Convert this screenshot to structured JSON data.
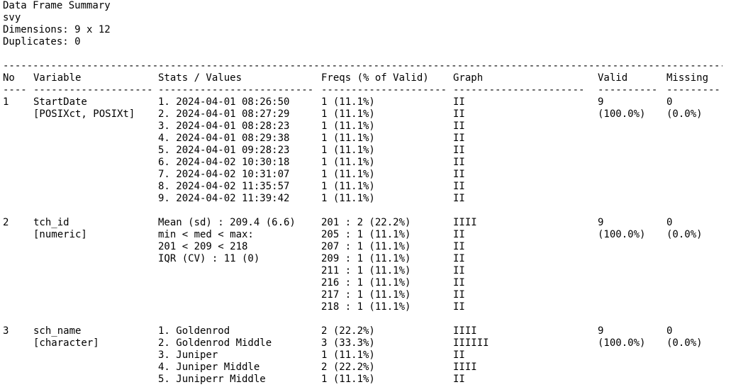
{
  "summary": {
    "title": "Data Frame Summary",
    "name": "svy",
    "dimensions": "Dimensions: 9 x 12",
    "duplicates": "Duplicates: 0"
  },
  "header": {
    "no": "No",
    "variable": "Variable",
    "stats": "Stats / Values",
    "freqs": "Freqs (% of Valid)",
    "graph": "Graph",
    "valid": "Valid",
    "missing": "Missing"
  },
  "rows": [
    {
      "no": "1",
      "variable": [
        "StartDate",
        "[POSIXct, POSIXt]"
      ],
      "stats": [
        "1. 2024-04-01 08:26:50",
        "2. 2024-04-01 08:27:29",
        "3. 2024-04-01 08:28:23",
        "4. 2024-04-01 08:29:38",
        "5. 2024-04-01 09:28:23",
        "6. 2024-04-02 10:30:18",
        "7. 2024-04-02 10:31:07",
        "8. 2024-04-02 11:35:57",
        "9. 2024-04-02 11:39:42"
      ],
      "freqs": [
        "1 (11.1%)",
        "1 (11.1%)",
        "1 (11.1%)",
        "1 (11.1%)",
        "1 (11.1%)",
        "1 (11.1%)",
        "1 (11.1%)",
        "1 (11.1%)",
        "1 (11.1%)"
      ],
      "graph": [
        "II",
        "II",
        "II",
        "II",
        "II",
        "II",
        "II",
        "II",
        "II"
      ],
      "valid": [
        "9",
        "(100.0%)"
      ],
      "missing": [
        "0",
        "(0.0%)"
      ]
    },
    {
      "no": "2",
      "variable": [
        "tch_id",
        "[numeric]"
      ],
      "stats": [
        "Mean (sd) : 209.4 (6.6)",
        "min < med < max:",
        "201 < 209 < 218",
        "IQR (CV) : 11 (0)"
      ],
      "freqs": [
        "201 : 2 (22.2%)",
        "205 : 1 (11.1%)",
        "207 : 1 (11.1%)",
        "209 : 1 (11.1%)",
        "211 : 1 (11.1%)",
        "216 : 1 (11.1%)",
        "217 : 1 (11.1%)",
        "218 : 1 (11.1%)"
      ],
      "graph": [
        "IIII",
        "II",
        "II",
        "II",
        "II",
        "II",
        "II",
        "II"
      ],
      "valid": [
        "9",
        "(100.0%)"
      ],
      "missing": [
        "0",
        "(0.0%)"
      ]
    },
    {
      "no": "3",
      "variable": [
        "sch_name",
        "[character]"
      ],
      "stats": [
        "1. Goldenrod",
        "2. Goldenrod Middle",
        "3. Juniper",
        "4. Juniper Middle",
        "5. Juniperr Middle"
      ],
      "freqs": [
        "2 (22.2%)",
        "3 (33.3%)",
        "1 (11.1%)",
        "2 (22.2%)",
        "1 (11.1%)"
      ],
      "graph": [
        "IIII",
        "IIIIII",
        "II",
        "IIII",
        "II"
      ],
      "valid": [
        "9",
        "(100.0%)"
      ],
      "missing": [
        "0",
        "(0.0%)"
      ]
    }
  ]
}
